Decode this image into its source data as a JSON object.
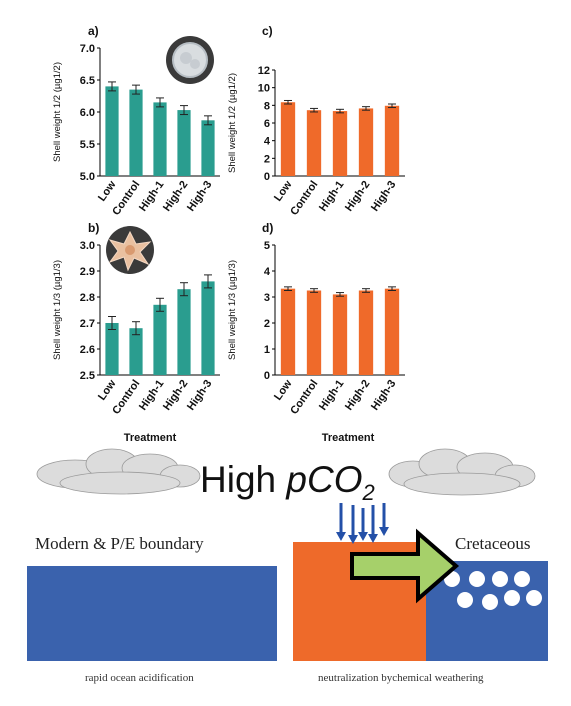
{
  "chart_data": [
    {
      "type": "bar",
      "panel_label": "a)",
      "categories": [
        "Low",
        "Control",
        "High-1",
        "High-2",
        "High-3"
      ],
      "values": [
        6.4,
        6.35,
        6.15,
        6.03,
        5.87
      ],
      "errors": [
        0.07,
        0.07,
        0.07,
        0.07,
        0.07
      ],
      "ylabel": "Shell weight 1/2 (µg1/2)",
      "ylim": [
        5.0,
        7.0
      ],
      "yticks": [
        "5.0",
        "5.5",
        "6.0",
        "6.5",
        "7.0"
      ],
      "color": "#2a9d8f"
    },
    {
      "type": "bar",
      "panel_label": "c)",
      "categories": [
        "Low",
        "Control",
        "High-1",
        "High-2",
        "High-3"
      ],
      "values": [
        8.35,
        7.45,
        7.35,
        7.65,
        7.95
      ],
      "errors": [
        0.2,
        0.2,
        0.2,
        0.2,
        0.2
      ],
      "ylabel": "Shell weight 1/2 (µg1/2)",
      "ylim": [
        0,
        12
      ],
      "yticks": [
        "0",
        "2",
        "4",
        "6",
        "8",
        "10",
        "12"
      ],
      "color": "#ef6a2a"
    },
    {
      "type": "bar",
      "panel_label": "b)",
      "categories": [
        "Low",
        "Control",
        "High-1",
        "High-2",
        "High-3"
      ],
      "values": [
        2.7,
        2.68,
        2.77,
        2.83,
        2.86
      ],
      "errors": [
        0.025,
        0.025,
        0.025,
        0.025,
        0.025
      ],
      "ylabel": "Shell weight 1/3 (µg1/3)",
      "ylim": [
        2.5,
        3.0
      ],
      "yticks": [
        "2.5",
        "2.6",
        "2.7",
        "2.8",
        "2.9",
        "3.0"
      ],
      "color": "#2a9d8f",
      "xlabel": "Treatment"
    },
    {
      "type": "bar",
      "panel_label": "d)",
      "categories": [
        "Low",
        "Control",
        "High-1",
        "High-2",
        "High-3"
      ],
      "values": [
        3.32,
        3.25,
        3.1,
        3.25,
        3.32
      ],
      "errors": [
        0.07,
        0.07,
        0.07,
        0.07,
        0.07
      ],
      "ylabel": "Shell weight 1/3 (µg1/3)",
      "ylim": [
        0,
        5
      ],
      "yticks": [
        "0",
        "1",
        "2",
        "3",
        "4",
        "5"
      ],
      "color": "#ef6a2a",
      "xlabel": "Treatment"
    }
  ],
  "diagram": {
    "headline_prefix": "High ",
    "headline_italic": "pCO",
    "headline_sub": "2",
    "left_title": "Modern & P/E boundary",
    "right_title": "Cretaceous",
    "left_caption": "rapid ocean acidification",
    "right_caption": "neutralization bychemical weathering",
    "ocean_color": "#3a62ad",
    "orange_color": "#ee6a2a",
    "arrow_color": "#a6d06a",
    "cloud_color": "#dcdcdc"
  }
}
